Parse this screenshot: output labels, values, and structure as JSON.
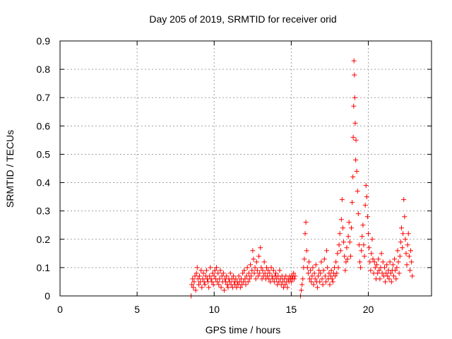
{
  "chart_data": {
    "type": "scatter",
    "title": "Day 205 of 2019, SRMTID for receiver orid",
    "xlabel": "GPS time / hours",
    "ylabel": "SRMTID / TECUs",
    "xlim": [
      0,
      24.1
    ],
    "ylim": [
      0,
      0.9
    ],
    "xticks": [
      0,
      5,
      10,
      15,
      20
    ],
    "yticks": [
      0,
      0.1,
      0.2,
      0.3,
      0.4,
      0.5,
      0.6,
      0.7,
      0.8,
      0.9
    ],
    "xtick_labels": [
      "0",
      "5",
      "10",
      "15",
      "20"
    ],
    "ytick_labels": [
      "0",
      "0.1",
      "0.2",
      "0.3",
      "0.4",
      "0.5",
      "0.6",
      "0.7",
      "0.8",
      "0.9"
    ],
    "grid": true,
    "marker": "+",
    "color": "#ff0000",
    "series": [
      {
        "name": "SRMTID",
        "points": [
          [
            8.5,
            0.0
          ],
          [
            8.55,
            0.04
          ],
          [
            8.6,
            0.06
          ],
          [
            8.65,
            0.03
          ],
          [
            8.7,
            0.05
          ],
          [
            8.75,
            0.07
          ],
          [
            8.8,
            0.02
          ],
          [
            8.85,
            0.08
          ],
          [
            8.9,
            0.1
          ],
          [
            8.95,
            0.06
          ],
          [
            9.0,
            0.04
          ],
          [
            9.05,
            0.07
          ],
          [
            9.1,
            0.05
          ],
          [
            9.15,
            0.09
          ],
          [
            9.2,
            0.03
          ],
          [
            9.25,
            0.06
          ],
          [
            9.3,
            0.08
          ],
          [
            9.35,
            0.05
          ],
          [
            9.4,
            0.04
          ],
          [
            9.45,
            0.07
          ],
          [
            9.5,
            0.09
          ],
          [
            9.55,
            0.06
          ],
          [
            9.6,
            0.05
          ],
          [
            9.65,
            0.03
          ],
          [
            9.7,
            0.07
          ],
          [
            9.75,
            0.1
          ],
          [
            9.8,
            0.06
          ],
          [
            9.85,
            0.05
          ],
          [
            9.9,
            0.08
          ],
          [
            9.95,
            0.04
          ],
          [
            10.0,
            0.07
          ],
          [
            10.05,
            0.09
          ],
          [
            10.1,
            0.06
          ],
          [
            10.15,
            0.1
          ],
          [
            10.2,
            0.05
          ],
          [
            10.25,
            0.08
          ],
          [
            10.3,
            0.04
          ],
          [
            10.35,
            0.06
          ],
          [
            10.4,
            0.09
          ],
          [
            10.45,
            0.03
          ],
          [
            10.5,
            0.07
          ],
          [
            10.55,
            0.05
          ],
          [
            10.6,
            0.08
          ],
          [
            10.65,
            0.02
          ],
          [
            10.7,
            0.06
          ],
          [
            10.75,
            0.05
          ],
          [
            10.8,
            0.07
          ],
          [
            10.85,
            0.04
          ],
          [
            10.9,
            0.03
          ],
          [
            10.95,
            0.06
          ],
          [
            11.0,
            0.05
          ],
          [
            11.05,
            0.08
          ],
          [
            11.1,
            0.04
          ],
          [
            11.15,
            0.06
          ],
          [
            11.2,
            0.03
          ],
          [
            11.25,
            0.07
          ],
          [
            11.3,
            0.05
          ],
          [
            11.35,
            0.04
          ],
          [
            11.4,
            0.06
          ],
          [
            11.45,
            0.03
          ],
          [
            11.5,
            0.05
          ],
          [
            11.55,
            0.04
          ],
          [
            11.6,
            0.07
          ],
          [
            11.65,
            0.05
          ],
          [
            11.7,
            0.03
          ],
          [
            11.75,
            0.06
          ],
          [
            11.8,
            0.04
          ],
          [
            11.85,
            0.08
          ],
          [
            11.9,
            0.05
          ],
          [
            11.95,
            0.09
          ],
          [
            12.0,
            0.06
          ],
          [
            12.05,
            0.04
          ],
          [
            12.1,
            0.07
          ],
          [
            12.15,
            0.1
          ],
          [
            12.2,
            0.05
          ],
          [
            12.25,
            0.08
          ],
          [
            12.3,
            0.06
          ],
          [
            12.35,
            0.11
          ],
          [
            12.4,
            0.07
          ],
          [
            12.45,
            0.09
          ],
          [
            12.5,
            0.16
          ],
          [
            12.55,
            0.13
          ],
          [
            12.6,
            0.08
          ],
          [
            12.65,
            0.1
          ],
          [
            12.7,
            0.06
          ],
          [
            12.75,
            0.12
          ],
          [
            12.8,
            0.09
          ],
          [
            12.85,
            0.07
          ],
          [
            12.9,
            0.14
          ],
          [
            12.95,
            0.08
          ],
          [
            13.0,
            0.17
          ],
          [
            13.05,
            0.1
          ],
          [
            13.1,
            0.06
          ],
          [
            13.15,
            0.09
          ],
          [
            13.2,
            0.07
          ],
          [
            13.25,
            0.12
          ],
          [
            13.3,
            0.08
          ],
          [
            13.35,
            0.06
          ],
          [
            13.4,
            0.1
          ],
          [
            13.45,
            0.07
          ],
          [
            13.5,
            0.09
          ],
          [
            13.55,
            0.06
          ],
          [
            13.6,
            0.08
          ],
          [
            13.65,
            0.05
          ],
          [
            13.7,
            0.1
          ],
          [
            13.75,
            0.07
          ],
          [
            13.8,
            0.06
          ],
          [
            13.85,
            0.09
          ],
          [
            13.9,
            0.05
          ],
          [
            13.95,
            0.07
          ],
          [
            14.0,
            0.08
          ],
          [
            14.05,
            0.06
          ],
          [
            14.1,
            0.04
          ],
          [
            14.15,
            0.07
          ],
          [
            14.2,
            0.05
          ],
          [
            14.25,
            0.09
          ],
          [
            14.3,
            0.06
          ],
          [
            14.35,
            0.04
          ],
          [
            14.4,
            0.07
          ],
          [
            14.45,
            0.05
          ],
          [
            14.5,
            0.03
          ],
          [
            14.55,
            0.06
          ],
          [
            14.6,
            0.04
          ],
          [
            14.65,
            0.07
          ],
          [
            14.7,
            0.05
          ],
          [
            14.75,
            0.03
          ],
          [
            14.8,
            0.06
          ],
          [
            14.85,
            0.05
          ],
          [
            14.9,
            0.07
          ],
          [
            14.95,
            0.06
          ],
          [
            15.0,
            0.05
          ],
          [
            15.05,
            0.07
          ],
          [
            15.1,
            0.06
          ],
          [
            15.15,
            0.08
          ],
          [
            15.2,
            0.06
          ],
          [
            15.25,
            0.07
          ],
          [
            15.6,
            0.0
          ],
          [
            15.65,
            0.02
          ],
          [
            15.7,
            0.04
          ],
          [
            15.75,
            0.06
          ],
          [
            15.8,
            0.1
          ],
          [
            15.85,
            0.13
          ],
          [
            15.9,
            0.22
          ],
          [
            15.95,
            0.26
          ],
          [
            16.0,
            0.16
          ],
          [
            16.05,
            0.1
          ],
          [
            16.1,
            0.08
          ],
          [
            16.15,
            0.12
          ],
          [
            16.2,
            0.06
          ],
          [
            16.25,
            0.09
          ],
          [
            16.3,
            0.05
          ],
          [
            16.35,
            0.07
          ],
          [
            16.4,
            0.1
          ],
          [
            16.45,
            0.04
          ],
          [
            16.5,
            0.08
          ],
          [
            16.55,
            0.06
          ],
          [
            16.6,
            0.11
          ],
          [
            16.65,
            0.05
          ],
          [
            16.7,
            0.03
          ],
          [
            16.75,
            0.07
          ],
          [
            16.8,
            0.09
          ],
          [
            16.85,
            0.05
          ],
          [
            16.9,
            0.08
          ],
          [
            16.95,
            0.12
          ],
          [
            17.0,
            0.06
          ],
          [
            17.05,
            0.04
          ],
          [
            17.1,
            0.09
          ],
          [
            17.15,
            0.13
          ],
          [
            17.2,
            0.07
          ],
          [
            17.25,
            0.05
          ],
          [
            17.3,
            0.16
          ],
          [
            17.35,
            0.1
          ],
          [
            17.4,
            0.06
          ],
          [
            17.45,
            0.08
          ],
          [
            17.5,
            0.04
          ],
          [
            17.55,
            0.07
          ],
          [
            17.6,
            0.09
          ],
          [
            17.65,
            0.06
          ],
          [
            17.7,
            0.05
          ],
          [
            17.75,
            0.08
          ],
          [
            17.8,
            0.1
          ],
          [
            17.85,
            0.07
          ],
          [
            17.9,
            0.12
          ],
          [
            17.95,
            0.08
          ],
          [
            18.0,
            0.15
          ],
          [
            18.05,
            0.1
          ],
          [
            18.1,
            0.18
          ],
          [
            18.15,
            0.22
          ],
          [
            18.2,
            0.16
          ],
          [
            18.25,
            0.27
          ],
          [
            18.3,
            0.34
          ],
          [
            18.35,
            0.24
          ],
          [
            18.4,
            0.19
          ],
          [
            18.45,
            0.14
          ],
          [
            18.5,
            0.09
          ],
          [
            18.55,
            0.12
          ],
          [
            18.6,
            0.17
          ],
          [
            18.65,
            0.13
          ],
          [
            18.7,
            0.21
          ],
          [
            18.75,
            0.26
          ],
          [
            18.8,
            0.19
          ],
          [
            18.85,
            0.14
          ],
          [
            18.9,
            0.24
          ],
          [
            18.95,
            0.33
          ],
          [
            19.0,
            0.42
          ],
          [
            19.02,
            0.56
          ],
          [
            19.05,
            0.67
          ],
          [
            19.07,
            0.83
          ],
          [
            19.1,
            0.78
          ],
          [
            19.12,
            0.7
          ],
          [
            19.15,
            0.61
          ],
          [
            19.18,
            0.48
          ],
          [
            19.2,
            0.55
          ],
          [
            19.25,
            0.44
          ],
          [
            19.3,
            0.37
          ],
          [
            19.35,
            0.29
          ],
          [
            19.4,
            0.18
          ],
          [
            19.45,
            0.12
          ],
          [
            19.5,
            0.1
          ],
          [
            19.55,
            0.16
          ],
          [
            19.6,
            0.21
          ],
          [
            19.65,
            0.25
          ],
          [
            19.7,
            0.18
          ],
          [
            19.75,
            0.14
          ],
          [
            19.8,
            0.32
          ],
          [
            19.85,
            0.39
          ],
          [
            19.9,
            0.35
          ],
          [
            19.95,
            0.28
          ],
          [
            20.0,
            0.22
          ],
          [
            20.05,
            0.17
          ],
          [
            20.1,
            0.12
          ],
          [
            20.15,
            0.09
          ],
          [
            20.2,
            0.15
          ],
          [
            20.25,
            0.2
          ],
          [
            20.3,
            0.13
          ],
          [
            20.35,
            0.08
          ],
          [
            20.4,
            0.12
          ],
          [
            20.45,
            0.1
          ],
          [
            20.5,
            0.06
          ],
          [
            20.55,
            0.11
          ],
          [
            20.6,
            0.08
          ],
          [
            20.65,
            0.13
          ],
          [
            20.7,
            0.09
          ],
          [
            20.75,
            0.06
          ],
          [
            20.8,
            0.1
          ],
          [
            20.85,
            0.15
          ],
          [
            20.9,
            0.08
          ],
          [
            20.95,
            0.12
          ],
          [
            21.0,
            0.07
          ],
          [
            21.05,
            0.1
          ],
          [
            21.1,
            0.05
          ],
          [
            21.15,
            0.08
          ],
          [
            21.2,
            0.11
          ],
          [
            21.25,
            0.07
          ],
          [
            21.3,
            0.09
          ],
          [
            21.35,
            0.06
          ],
          [
            21.4,
            0.12
          ],
          [
            21.45,
            0.08
          ],
          [
            21.5,
            0.05
          ],
          [
            21.55,
            0.09
          ],
          [
            21.6,
            0.11
          ],
          [
            21.65,
            0.07
          ],
          [
            21.7,
            0.13
          ],
          [
            21.75,
            0.09
          ],
          [
            21.8,
            0.06
          ],
          [
            21.85,
            0.1
          ],
          [
            21.9,
            0.16
          ],
          [
            21.95,
            0.12
          ],
          [
            22.0,
            0.08
          ],
          [
            22.05,
            0.14
          ],
          [
            22.1,
            0.19
          ],
          [
            22.15,
            0.24
          ],
          [
            22.2,
            0.17
          ],
          [
            22.25,
            0.22
          ],
          [
            22.3,
            0.34
          ],
          [
            22.35,
            0.28
          ],
          [
            22.4,
            0.2
          ],
          [
            22.45,
            0.15
          ],
          [
            22.5,
            0.11
          ],
          [
            22.55,
            0.18
          ],
          [
            22.6,
            0.22
          ],
          [
            22.65,
            0.14
          ],
          [
            22.7,
            0.09
          ],
          [
            22.75,
            0.16
          ],
          [
            22.8,
            0.12
          ],
          [
            22.85,
            0.07
          ]
        ]
      }
    ]
  }
}
